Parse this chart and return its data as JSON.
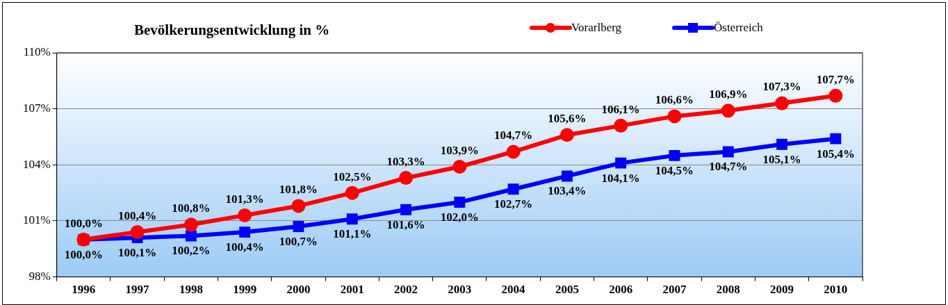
{
  "chart_data": {
    "type": "line",
    "title": "Bevölkerungsentwicklung in %",
    "categories": [
      "1996",
      "1997",
      "1998",
      "1999",
      "2000",
      "2001",
      "2002",
      "2003",
      "2004",
      "2005",
      "2006",
      "2007",
      "2008",
      "2009",
      "2010"
    ],
    "series": [
      {
        "name": "Vorarlberg",
        "color": "#ff0000",
        "marker": "circle",
        "values": [
          100.0,
          100.4,
          100.8,
          101.3,
          101.8,
          102.5,
          103.3,
          103.9,
          104.7,
          105.6,
          106.1,
          106.6,
          106.9,
          107.3,
          107.7
        ],
        "value_labels": [
          "100,0%",
          "100,4%",
          "100,8%",
          "101,3%",
          "101,8%",
          "102,5%",
          "103,3%",
          "103,9%",
          "104,7%",
          "105,6%",
          "106,1%",
          "106,6%",
          "106,9%",
          "107,3%",
          "107,7%"
        ]
      },
      {
        "name": "Österreich",
        "color": "#0000ff",
        "marker": "square",
        "values": [
          100.0,
          100.1,
          100.2,
          100.4,
          100.7,
          101.1,
          101.6,
          102.0,
          102.7,
          103.4,
          104.1,
          104.5,
          104.7,
          105.1,
          105.4
        ],
        "value_labels": [
          "100,0%",
          "100,1%",
          "100,2%",
          "100,4%",
          "100,7%",
          "101,1%",
          "101,6%",
          "102,0%",
          "102,7%",
          "103,4%",
          "104,1%",
          "104,5%",
          "104,7%",
          "105,1%",
          "105,4%"
        ]
      }
    ],
    "ylim": [
      98,
      110
    ],
    "yticks": [
      {
        "value": 98,
        "label": "98%"
      },
      {
        "value": 101,
        "label": "101%"
      },
      {
        "value": 104,
        "label": "104%"
      },
      {
        "value": 107,
        "label": "107%"
      },
      {
        "value": 110,
        "label": "110%"
      }
    ],
    "grid": "y",
    "legend": "top right",
    "line_style": "solid"
  }
}
